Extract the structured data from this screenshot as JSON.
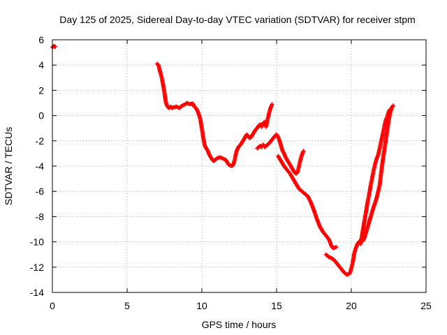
{
  "chart_data": {
    "type": "scatter",
    "title": "Day 125 of 2025, Sidereal Day-to-day VTEC variation (SDTVAR) for receiver stpm",
    "xlabel": "GPS time / hours",
    "ylabel": "SDTVAR / TECUs",
    "xlim": [
      0,
      25
    ],
    "ylim": [
      -14,
      6
    ],
    "x_ticks": [
      0,
      5,
      10,
      15,
      20,
      25
    ],
    "x_tick_labels": [
      "0",
      "5",
      "10",
      "15",
      "20",
      "25"
    ],
    "y_ticks": [
      -14,
      -12,
      -10,
      -8,
      -6,
      -4,
      -2,
      0,
      2,
      4,
      6
    ],
    "y_tick_labels": [
      "-14",
      "-12",
      "-10",
      "-8",
      "-6",
      "-4",
      "-2",
      "0",
      "2",
      "4",
      "6"
    ],
    "grid": true,
    "marker": "plus",
    "color": "#ff0000",
    "series": [
      {
        "name": "SDTVAR",
        "segments": [
          [
            [
              0.0,
              5.4
            ],
            [
              0.1,
              5.5
            ],
            [
              0.2,
              5.45
            ]
          ],
          [
            [
              7.0,
              4.1
            ],
            [
              7.1,
              4.0
            ],
            [
              7.2,
              3.5
            ],
            [
              7.3,
              3.1
            ],
            [
              7.4,
              2.5
            ],
            [
              7.5,
              1.8
            ],
            [
              7.6,
              1.0
            ],
            [
              7.7,
              0.7
            ],
            [
              7.8,
              0.6
            ],
            [
              7.9,
              0.7
            ],
            [
              8.0,
              0.6
            ],
            [
              8.1,
              0.65
            ],
            [
              8.3,
              0.7
            ],
            [
              8.5,
              0.6
            ],
            [
              8.7,
              0.8
            ],
            [
              8.9,
              0.9
            ],
            [
              9.0,
              1.0
            ],
            [
              9.2,
              0.9
            ],
            [
              9.4,
              0.95
            ],
            [
              9.5,
              0.7
            ],
            [
              9.6,
              0.6
            ],
            [
              9.7,
              0.4
            ],
            [
              9.8,
              0.1
            ],
            [
              9.9,
              -0.3
            ],
            [
              10.0,
              -1.0
            ],
            [
              10.1,
              -1.8
            ],
            [
              10.2,
              -2.4
            ],
            [
              10.3,
              -2.6
            ],
            [
              10.4,
              -2.8
            ],
            [
              10.5,
              -3.1
            ],
            [
              10.6,
              -3.3
            ],
            [
              10.7,
              -3.5
            ],
            [
              10.8,
              -3.6
            ],
            [
              10.9,
              -3.5
            ],
            [
              11.0,
              -3.4
            ],
            [
              11.2,
              -3.3
            ],
            [
              11.4,
              -3.4
            ],
            [
              11.6,
              -3.5
            ],
            [
              11.8,
              -3.9
            ],
            [
              12.0,
              -4.0
            ],
            [
              12.1,
              -3.9
            ],
            [
              12.2,
              -3.5
            ],
            [
              12.3,
              -2.9
            ],
            [
              12.4,
              -2.6
            ],
            [
              12.5,
              -2.4
            ],
            [
              12.6,
              -2.3
            ],
            [
              12.7,
              -2.1
            ],
            [
              12.8,
              -1.9
            ],
            [
              12.9,
              -1.7
            ],
            [
              13.0,
              -1.5
            ],
            [
              13.1,
              -1.6
            ],
            [
              13.2,
              -1.8
            ],
            [
              13.3,
              -1.7
            ],
            [
              13.4,
              -1.5
            ],
            [
              13.5,
              -1.3
            ],
            [
              13.6,
              -1.1
            ],
            [
              13.7,
              -1.0
            ],
            [
              13.8,
              -0.8
            ],
            [
              13.9,
              -0.7
            ],
            [
              14.0,
              -0.9
            ],
            [
              14.1,
              -0.6
            ],
            [
              14.2,
              -0.5
            ],
            [
              14.3,
              -0.9
            ],
            [
              14.4,
              -0.3
            ],
            [
              14.5,
              0.2
            ],
            [
              14.6,
              0.6
            ],
            [
              14.7,
              0.9
            ]
          ],
          [
            [
              13.7,
              -2.6
            ],
            [
              13.8,
              -2.5
            ],
            [
              13.9,
              -2.4
            ],
            [
              14.0,
              -2.5
            ],
            [
              14.1,
              -2.3
            ],
            [
              14.2,
              -2.5
            ],
            [
              14.3,
              -2.4
            ],
            [
              14.5,
              -2.2
            ],
            [
              14.7,
              -1.9
            ],
            [
              14.9,
              -1.6
            ],
            [
              15.0,
              -1.5
            ],
            [
              15.1,
              -1.7
            ],
            [
              15.2,
              -2.0
            ],
            [
              15.3,
              -2.4
            ],
            [
              15.4,
              -2.8
            ],
            [
              15.5,
              -3.0
            ],
            [
              15.6,
              -3.3
            ],
            [
              15.7,
              -3.5
            ],
            [
              15.8,
              -3.7
            ],
            [
              15.9,
              -3.9
            ],
            [
              16.0,
              -4.1
            ],
            [
              16.1,
              -4.3
            ],
            [
              16.2,
              -4.5
            ],
            [
              16.3,
              -4.6
            ],
            [
              16.4,
              -4.5
            ],
            [
              16.5,
              -4.0
            ],
            [
              16.6,
              -3.5
            ],
            [
              16.7,
              -3.1
            ],
            [
              16.8,
              -2.8
            ]
          ],
          [
            [
              15.1,
              -3.2
            ],
            [
              15.3,
              -3.6
            ],
            [
              15.5,
              -4.0
            ],
            [
              15.7,
              -4.3
            ],
            [
              15.9,
              -4.6
            ],
            [
              16.1,
              -5.0
            ],
            [
              16.3,
              -5.4
            ],
            [
              16.5,
              -5.8
            ],
            [
              16.7,
              -6.0
            ],
            [
              16.9,
              -6.2
            ],
            [
              17.1,
              -6.4
            ],
            [
              17.3,
              -6.9
            ],
            [
              17.5,
              -7.5
            ],
            [
              17.7,
              -8.2
            ],
            [
              17.9,
              -8.8
            ],
            [
              18.1,
              -9.2
            ],
            [
              18.3,
              -9.5
            ],
            [
              18.5,
              -9.8
            ],
            [
              18.6,
              -10.1
            ],
            [
              18.7,
              -10.4
            ],
            [
              18.8,
              -10.5
            ],
            [
              19.0,
              -10.4
            ]
          ],
          [
            [
              18.3,
              -11.0
            ],
            [
              18.5,
              -11.2
            ],
            [
              18.7,
              -11.3
            ],
            [
              18.9,
              -11.5
            ],
            [
              19.1,
              -11.8
            ],
            [
              19.3,
              -12.1
            ],
            [
              19.5,
              -12.4
            ],
            [
              19.7,
              -12.6
            ],
            [
              19.9,
              -12.5
            ],
            [
              20.0,
              -12.1
            ],
            [
              20.1,
              -11.6
            ],
            [
              20.2,
              -10.9
            ],
            [
              20.3,
              -10.5
            ],
            [
              20.4,
              -10.2
            ],
            [
              20.5,
              -10.0
            ],
            [
              20.6,
              -9.9
            ],
            [
              20.7,
              -9.8
            ],
            [
              20.8,
              -9.9
            ],
            [
              20.9,
              -9.6
            ],
            [
              21.0,
              -9.2
            ],
            [
              21.1,
              -8.8
            ],
            [
              21.2,
              -8.4
            ],
            [
              21.3,
              -8.0
            ],
            [
              21.4,
              -7.6
            ],
            [
              21.5,
              -7.2
            ],
            [
              21.6,
              -6.9
            ],
            [
              21.7,
              -6.5
            ],
            [
              21.8,
              -6.0
            ],
            [
              21.9,
              -5.5
            ],
            [
              22.0,
              -4.5
            ],
            [
              22.1,
              -3.6
            ],
            [
              22.2,
              -2.8
            ],
            [
              22.3,
              -2.0
            ],
            [
              22.4,
              -1.2
            ],
            [
              22.5,
              -0.4
            ],
            [
              22.6,
              0.2
            ],
            [
              22.7,
              0.6
            ],
            [
              22.8,
              0.8
            ]
          ],
          [
            [
              20.6,
              -10.2
            ],
            [
              20.7,
              -9.6
            ],
            [
              20.8,
              -8.9
            ],
            [
              20.9,
              -8.2
            ],
            [
              21.0,
              -7.5
            ],
            [
              21.1,
              -6.8
            ],
            [
              21.2,
              -6.2
            ],
            [
              21.3,
              -5.5
            ],
            [
              21.4,
              -4.9
            ],
            [
              21.5,
              -4.3
            ],
            [
              21.6,
              -3.8
            ],
            [
              21.7,
              -3.4
            ],
            [
              21.8,
              -3.1
            ],
            [
              21.9,
              -2.6
            ],
            [
              22.0,
              -2.0
            ],
            [
              22.1,
              -1.5
            ],
            [
              22.2,
              -0.9
            ],
            [
              22.3,
              -0.4
            ],
            [
              22.4,
              -0.1
            ],
            [
              22.5,
              0.3
            ],
            [
              22.6,
              0.5
            ]
          ]
        ]
      }
    ]
  }
}
